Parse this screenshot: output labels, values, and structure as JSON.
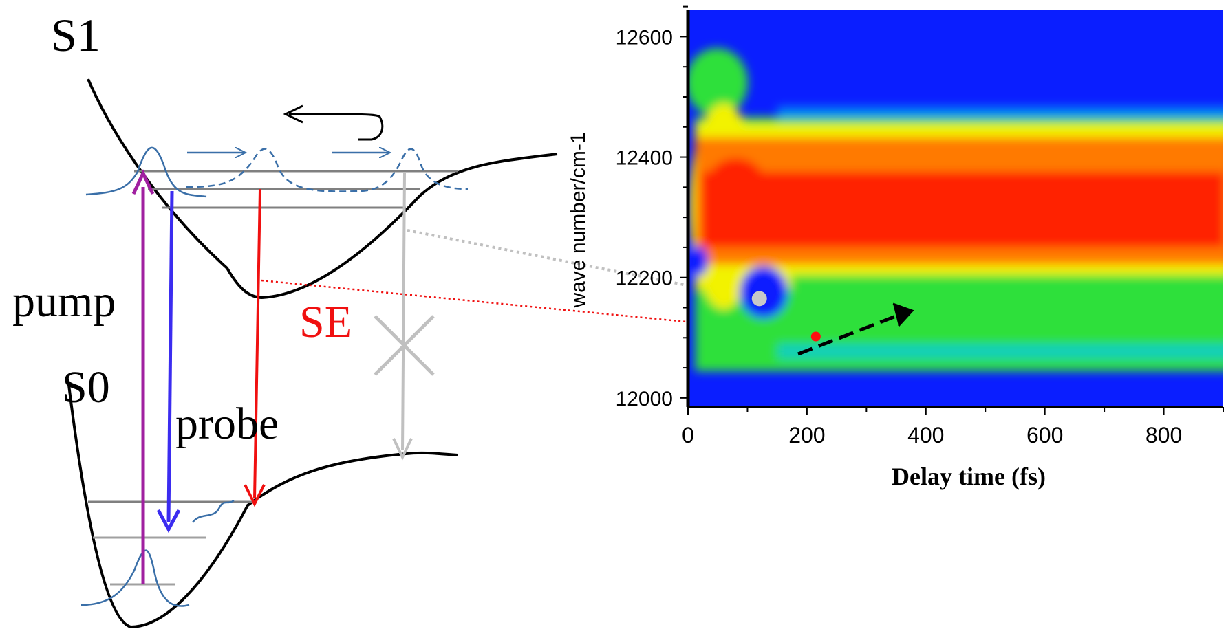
{
  "diagram": {
    "labels": {
      "s1": "S1",
      "s0": "S0",
      "pump": "pump",
      "probe": "probe",
      "se": "SE"
    },
    "colors": {
      "curve": "#000000",
      "pump": "#a020a0",
      "probe": "#3b2cf0",
      "se": "#f01010",
      "blocked": "#c0c0c0",
      "wavepacket": "#3a6fa8",
      "level": "#808080"
    }
  },
  "spectrogram": {
    "x_ticks": [
      "0",
      "200",
      "400",
      "600",
      "800"
    ],
    "y_ticks": [
      "12600",
      "12400",
      "12200",
      "12000"
    ],
    "x_label": "Delay time (fs)",
    "y_label": "wave number/cm-1",
    "xlim": [
      0,
      900
    ],
    "ylim": [
      11985,
      12645
    ],
    "colors": {
      "background": "#0a1eff",
      "green": "#2fe03a",
      "yellow": "#f2f200",
      "orange": "#ff7a00",
      "red": "#ff2400"
    },
    "markers": {
      "grey_dot": {
        "delay_fs": 120,
        "wavenumber": 12165
      },
      "red_dot": {
        "delay_fs": 215,
        "wavenumber": 12102
      }
    }
  }
}
